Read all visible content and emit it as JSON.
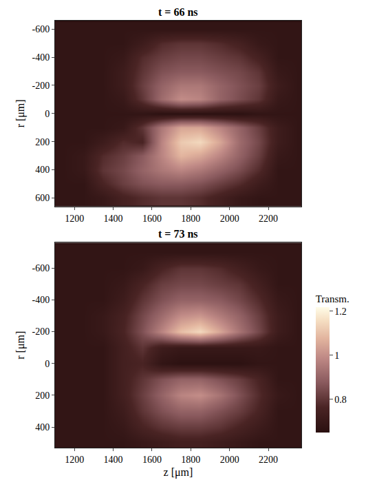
{
  "chart_data": [
    {
      "type": "heatmap",
      "title": "t = 66 ns",
      "y_label": "r [μm]",
      "x": [
        1150,
        1250,
        1350,
        1450,
        1550,
        1650,
        1750,
        1850,
        1950,
        2050,
        2150,
        2250,
        2350
      ],
      "y": [
        -600,
        -500,
        -400,
        -300,
        -200,
        -100,
        0,
        100,
        200,
        300,
        400,
        500,
        600
      ],
      "cells": [
        [
          0.68,
          0.68,
          0.68,
          0.68,
          0.68,
          0.68,
          0.68,
          0.68,
          0.68,
          0.68,
          0.68,
          0.68,
          0.68
        ],
        [
          0.68,
          0.68,
          0.68,
          0.68,
          0.72,
          0.78,
          0.8,
          0.8,
          0.78,
          0.75,
          0.7,
          0.68,
          0.68
        ],
        [
          0.68,
          0.68,
          0.68,
          0.7,
          0.78,
          0.82,
          0.84,
          0.84,
          0.82,
          0.8,
          0.75,
          0.68,
          0.68
        ],
        [
          0.68,
          0.68,
          0.68,
          0.72,
          0.8,
          0.86,
          0.88,
          0.88,
          0.86,
          0.84,
          0.8,
          0.7,
          0.68
        ],
        [
          0.68,
          0.68,
          0.68,
          0.72,
          0.82,
          0.9,
          0.95,
          0.95,
          0.9,
          0.86,
          0.82,
          0.72,
          0.68
        ],
        [
          0.68,
          0.68,
          0.68,
          0.7,
          0.8,
          0.92,
          1.0,
          0.98,
          0.9,
          0.85,
          0.8,
          0.7,
          0.68
        ],
        [
          0.68,
          0.68,
          0.68,
          0.68,
          0.68,
          0.66,
          0.66,
          0.66,
          0.66,
          0.66,
          0.68,
          0.68,
          0.68
        ],
        [
          0.68,
          0.68,
          0.68,
          0.7,
          0.8,
          0.95,
          1.05,
          1.05,
          0.98,
          0.9,
          0.82,
          0.72,
          0.68
        ],
        [
          0.68,
          0.68,
          0.72,
          0.78,
          0.76,
          0.98,
          1.12,
          1.15,
          1.05,
          0.92,
          0.84,
          0.72,
          0.68
        ],
        [
          0.68,
          0.7,
          0.78,
          0.82,
          0.88,
          0.98,
          1.08,
          1.05,
          0.98,
          0.9,
          0.82,
          0.7,
          0.68
        ],
        [
          0.68,
          0.7,
          0.8,
          0.84,
          0.9,
          0.95,
          0.98,
          0.95,
          0.9,
          0.85,
          0.78,
          0.68,
          0.68
        ],
        [
          0.68,
          0.68,
          0.76,
          0.82,
          0.86,
          0.88,
          0.88,
          0.86,
          0.82,
          0.78,
          0.72,
          0.68,
          0.68
        ],
        [
          0.68,
          0.68,
          0.7,
          0.75,
          0.78,
          0.8,
          0.8,
          0.78,
          0.74,
          0.7,
          0.68,
          0.68,
          0.68
        ]
      ],
      "xlim": [
        1100,
        2370
      ],
      "xticks": [
        1200,
        1400,
        1600,
        1800,
        2000,
        2200
      ],
      "ylim": [
        660,
        -660
      ],
      "yticks": [
        -600,
        -400,
        -200,
        0,
        200,
        400,
        600
      ]
    },
    {
      "type": "heatmap",
      "title": "t = 73 ns",
      "x_label": "z [μm]",
      "y_label": "r [μm]",
      "x": [
        1150,
        1250,
        1350,
        1450,
        1550,
        1650,
        1750,
        1850,
        1950,
        2050,
        2150,
        2250,
        2350
      ],
      "y": [
        -700,
        -600,
        -500,
        -400,
        -300,
        -200,
        -100,
        0,
        100,
        200,
        300,
        400,
        500
      ],
      "cells": [
        [
          0.68,
          0.68,
          0.68,
          0.68,
          0.68,
          0.68,
          0.68,
          0.68,
          0.68,
          0.68,
          0.68,
          0.68,
          0.68
        ],
        [
          0.68,
          0.68,
          0.68,
          0.68,
          0.7,
          0.76,
          0.8,
          0.8,
          0.78,
          0.74,
          0.7,
          0.68,
          0.68
        ],
        [
          0.68,
          0.68,
          0.68,
          0.7,
          0.76,
          0.82,
          0.84,
          0.84,
          0.82,
          0.8,
          0.74,
          0.68,
          0.68
        ],
        [
          0.68,
          0.68,
          0.68,
          0.72,
          0.8,
          0.86,
          0.9,
          0.9,
          0.88,
          0.84,
          0.78,
          0.7,
          0.68
        ],
        [
          0.68,
          0.68,
          0.7,
          0.75,
          0.84,
          0.92,
          1.0,
          1.02,
          0.96,
          0.9,
          0.82,
          0.72,
          0.68
        ],
        [
          0.68,
          0.68,
          0.7,
          0.76,
          0.86,
          0.98,
          1.1,
          1.15,
          1.05,
          0.94,
          0.84,
          0.72,
          0.68
        ],
        [
          0.68,
          0.68,
          0.68,
          0.74,
          0.8,
          0.72,
          0.7,
          0.7,
          0.7,
          0.7,
          0.7,
          0.68,
          0.68
        ],
        [
          0.68,
          0.68,
          0.68,
          0.74,
          0.76,
          0.68,
          0.66,
          0.66,
          0.66,
          0.66,
          0.68,
          0.68,
          0.68
        ],
        [
          0.68,
          0.68,
          0.68,
          0.74,
          0.8,
          0.86,
          0.9,
          0.9,
          0.86,
          0.82,
          0.76,
          0.68,
          0.68
        ],
        [
          0.68,
          0.68,
          0.68,
          0.74,
          0.82,
          0.9,
          0.98,
          1.0,
          0.94,
          0.86,
          0.78,
          0.7,
          0.68
        ],
        [
          0.68,
          0.68,
          0.68,
          0.72,
          0.8,
          0.86,
          0.9,
          0.9,
          0.86,
          0.82,
          0.76,
          0.68,
          0.68
        ],
        [
          0.68,
          0.68,
          0.68,
          0.7,
          0.76,
          0.8,
          0.82,
          0.82,
          0.8,
          0.76,
          0.72,
          0.68,
          0.68
        ],
        [
          0.68,
          0.68,
          0.68,
          0.68,
          0.7,
          0.72,
          0.74,
          0.74,
          0.72,
          0.7,
          0.68,
          0.68,
          0.68
        ]
      ],
      "xlim": [
        1100,
        2370
      ],
      "xticks": [
        1200,
        1400,
        1600,
        1800,
        2000,
        2200
      ],
      "ylim": [
        530,
        -760
      ],
      "yticks": [
        -600,
        -400,
        -200,
        0,
        200,
        400
      ],
      "colorbar": {
        "title": "Transm.",
        "range": [
          0.65,
          1.22
        ],
        "ticks": [
          0.8,
          1,
          1.2
        ]
      }
    }
  ]
}
